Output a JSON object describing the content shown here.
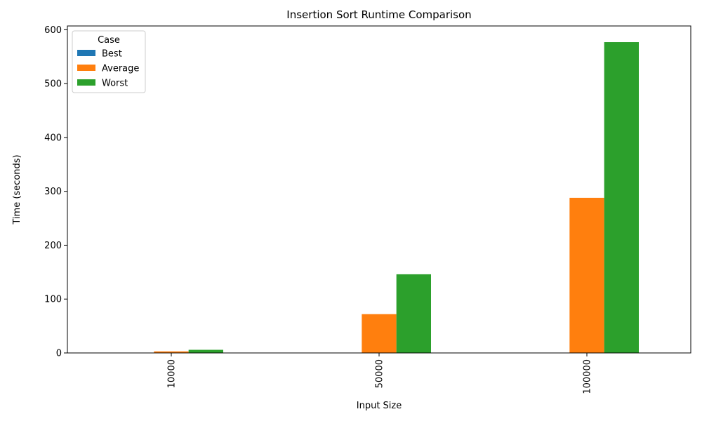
{
  "chart_data": {
    "type": "bar",
    "title": "Insertion Sort Runtime Comparison",
    "xlabel": "Input Size",
    "ylabel": "Time (seconds)",
    "categories": [
      "10000",
      "50000",
      "100000"
    ],
    "series": [
      {
        "name": "Best",
        "values": [
          0.0,
          0.0,
          0.0
        ],
        "color": "#1f77b4"
      },
      {
        "name": "Average",
        "values": [
          2.9,
          72.0,
          288.0
        ],
        "color": "#ff7f0e"
      },
      {
        "name": "Worst",
        "values": [
          5.8,
          146.0,
          577.0
        ],
        "color": "#2ca02c"
      }
    ],
    "ylim": [
      0,
      607
    ],
    "yticks": [
      0,
      100,
      200,
      300,
      400,
      500,
      600
    ],
    "legend": {
      "title": "Case",
      "position": "top-left"
    },
    "grid": false
  }
}
